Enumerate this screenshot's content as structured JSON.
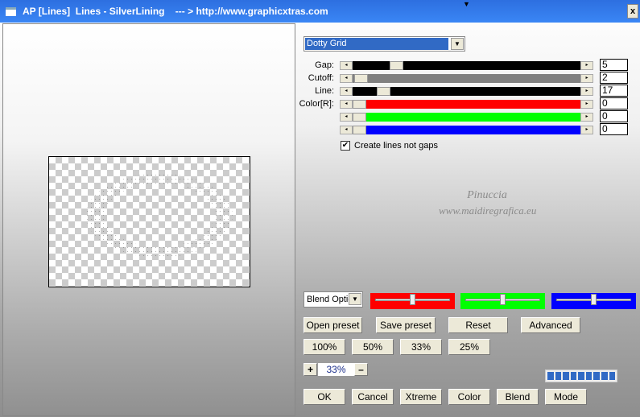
{
  "window": {
    "title": "AP [Lines]  Lines - SilverLining    --- > http://www.graphicxtras.com",
    "close_label": "x"
  },
  "preset_select": {
    "value": "Dotty Grid"
  },
  "sliders": [
    {
      "label": "Gap:",
      "value": "5",
      "fraction": 0.08,
      "color": "#000000"
    },
    {
      "label": "Cutoff:",
      "value": "2",
      "fraction": 0.0,
      "color": "#808080"
    },
    {
      "label": "Line:",
      "value": "17",
      "fraction": 0.04,
      "color": "#000000"
    },
    {
      "label": "Color[R]:",
      "value": "0",
      "fraction": 0.0,
      "color": "#ff0000"
    },
    {
      "label": "",
      "value": "0",
      "fraction": 0.0,
      "color": "#00ff00"
    },
    {
      "label": "",
      "value": "0",
      "fraction": 0.0,
      "color": "#0000ff"
    }
  ],
  "checkbox": {
    "label": "Create lines not gaps",
    "checked": true
  },
  "watermark": {
    "line1": "Pinuccia",
    "line2": "www.maidiregrafica.eu"
  },
  "blend": {
    "value": "Blend Optio",
    "sliders": [
      {
        "color": "#ff0000",
        "fraction": 0.5
      },
      {
        "color": "#00ff00",
        "fraction": 0.5
      },
      {
        "color": "#0000ff",
        "fraction": 0.5
      }
    ]
  },
  "buttons": {
    "open_preset": "Open preset",
    "save_preset": "Save preset",
    "reset": "Reset",
    "advanced": "Advanced",
    "z100": "100%",
    "z50": "50%",
    "z33": "33%",
    "z25": "25%",
    "plus": "+",
    "minus": "–",
    "ok": "OK",
    "cancel": "Cancel",
    "xtreme": "Xtreme",
    "color": "Color",
    "blend": "Blend",
    "mode": "Mode"
  },
  "zoom": {
    "value": "33%"
  },
  "progress": {
    "fraction": 1.0
  }
}
